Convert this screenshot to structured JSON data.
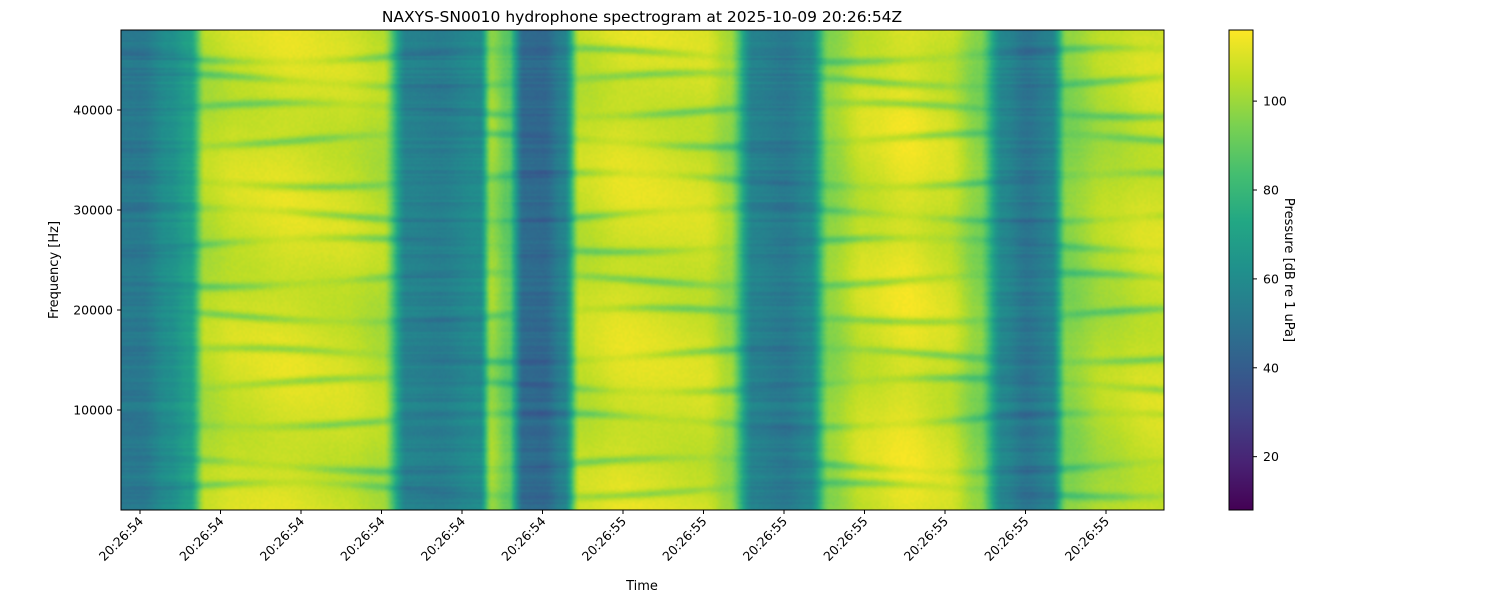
{
  "chart_data": {
    "type": "heatmap",
    "title": "NAXYS-SN0010 hydrophone spectrogram at 2025-10-09 20:26:54Z",
    "xlabel": "Time",
    "ylabel": "Frequency [Hz]",
    "colorbar_label": "Pressure [dB re 1 uPa]",
    "colormap": "viridis",
    "x_tick_labels": [
      "20:26:54",
      "20:26:54",
      "20:26:54",
      "20:26:54",
      "20:26:54",
      "20:26:54",
      "20:26:55",
      "20:26:55",
      "20:26:55",
      "20:26:55",
      "20:26:55",
      "20:26:55",
      "20:26:55"
    ],
    "y_ticks": [
      10000,
      20000,
      30000,
      40000
    ],
    "ylim": [
      0,
      48000
    ],
    "colorbar_ticks": [
      20,
      40,
      60,
      80,
      100
    ],
    "clim": [
      8,
      116
    ],
    "time_profile": {
      "description_units": "column level in dB re 1 uPa across time (13 tick intervals)",
      "points": [
        [
          0.0,
          52
        ],
        [
          0.35,
          62
        ],
        [
          0.6,
          70
        ],
        [
          0.8,
          104
        ],
        [
          1.2,
          108
        ],
        [
          1.8,
          110
        ],
        [
          2.5,
          108
        ],
        [
          3.0,
          104
        ],
        [
          3.3,
          56
        ],
        [
          3.7,
          54
        ],
        [
          4.2,
          60
        ],
        [
          4.35,
          100
        ],
        [
          4.55,
          90
        ],
        [
          4.75,
          46
        ],
        [
          5.0,
          45
        ],
        [
          5.25,
          56
        ],
        [
          5.45,
          106
        ],
        [
          6.0,
          110
        ],
        [
          7.0,
          108
        ],
        [
          7.3,
          100
        ],
        [
          7.6,
          56
        ],
        [
          8.0,
          52
        ],
        [
          8.3,
          58
        ],
        [
          8.55,
          98
        ],
        [
          9.0,
          108
        ],
        [
          9.5,
          112
        ],
        [
          10.0,
          108
        ],
        [
          10.4,
          96
        ],
        [
          10.7,
          58
        ],
        [
          11.0,
          50
        ],
        [
          11.3,
          56
        ],
        [
          11.5,
          96
        ],
        [
          12.0,
          104
        ],
        [
          12.5,
          108
        ],
        [
          13.0,
          110
        ]
      ]
    },
    "frequency_bands_hz": [
      2000,
      4500,
      9000,
      12500,
      15500,
      19500,
      23000,
      26500,
      29500,
      33000,
      37000,
      40000,
      43000,
      45500
    ]
  }
}
